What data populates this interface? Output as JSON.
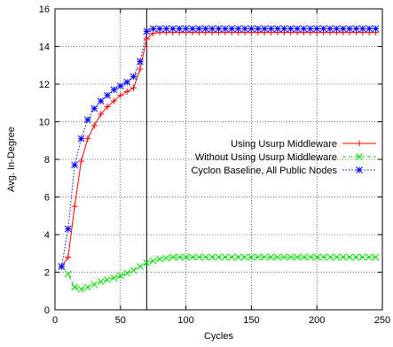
{
  "chart_data": {
    "type": "line",
    "xlabel": "Cycles",
    "ylabel": "Avg. In-Degree",
    "xlim": [
      0,
      250
    ],
    "ylim": [
      0,
      16
    ],
    "xticks": [
      0,
      50,
      100,
      150,
      200,
      250
    ],
    "yticks": [
      0,
      2,
      4,
      6,
      8,
      10,
      12,
      14,
      16
    ],
    "grid": true,
    "legend_position": "right-middle",
    "vline_x": 70,
    "series": [
      {
        "name": "Using Usurp Middleware",
        "color": "#ff0000",
        "marker": "plus",
        "dash": "solid",
        "points": [
          [
            5,
            2.3
          ],
          [
            10,
            2.8
          ],
          [
            15,
            5.5
          ],
          [
            20,
            7.9
          ],
          [
            25,
            9.1
          ],
          [
            30,
            9.8
          ],
          [
            35,
            10.4
          ],
          [
            40,
            10.8
          ],
          [
            45,
            11.1
          ],
          [
            50,
            11.4
          ],
          [
            55,
            11.6
          ],
          [
            60,
            11.8
          ],
          [
            65,
            12.8
          ],
          [
            70,
            14.4
          ],
          [
            75,
            14.7
          ],
          [
            80,
            14.75
          ],
          [
            85,
            14.75
          ],
          [
            90,
            14.75
          ],
          [
            95,
            14.75
          ],
          [
            100,
            14.75
          ],
          [
            105,
            14.75
          ],
          [
            110,
            14.75
          ],
          [
            115,
            14.75
          ],
          [
            120,
            14.75
          ],
          [
            125,
            14.75
          ],
          [
            130,
            14.75
          ],
          [
            135,
            14.75
          ],
          [
            140,
            14.75
          ],
          [
            145,
            14.75
          ],
          [
            150,
            14.75
          ],
          [
            155,
            14.75
          ],
          [
            160,
            14.75
          ],
          [
            165,
            14.75
          ],
          [
            170,
            14.75
          ],
          [
            175,
            14.75
          ],
          [
            180,
            14.75
          ],
          [
            185,
            14.75
          ],
          [
            190,
            14.75
          ],
          [
            195,
            14.75
          ],
          [
            200,
            14.75
          ],
          [
            205,
            14.75
          ],
          [
            210,
            14.75
          ],
          [
            215,
            14.75
          ],
          [
            220,
            14.75
          ],
          [
            225,
            14.75
          ],
          [
            230,
            14.75
          ],
          [
            235,
            14.75
          ],
          [
            240,
            14.75
          ],
          [
            245,
            14.75
          ]
        ]
      },
      {
        "name": "Without Using Usurp Middleware",
        "color": "#00dd00",
        "marker": "cross",
        "dash": "dashed",
        "points": [
          [
            5,
            2.3
          ],
          [
            10,
            1.9
          ],
          [
            15,
            1.2
          ],
          [
            20,
            1.1
          ],
          [
            25,
            1.2
          ],
          [
            30,
            1.35
          ],
          [
            35,
            1.5
          ],
          [
            40,
            1.6
          ],
          [
            45,
            1.7
          ],
          [
            50,
            1.8
          ],
          [
            55,
            1.95
          ],
          [
            60,
            2.1
          ],
          [
            65,
            2.3
          ],
          [
            70,
            2.5
          ],
          [
            75,
            2.6
          ],
          [
            80,
            2.7
          ],
          [
            85,
            2.75
          ],
          [
            90,
            2.8
          ],
          [
            95,
            2.8
          ],
          [
            100,
            2.8
          ],
          [
            105,
            2.8
          ],
          [
            110,
            2.8
          ],
          [
            115,
            2.8
          ],
          [
            120,
            2.8
          ],
          [
            125,
            2.8
          ],
          [
            130,
            2.8
          ],
          [
            135,
            2.8
          ],
          [
            140,
            2.8
          ],
          [
            145,
            2.8
          ],
          [
            150,
            2.8
          ],
          [
            155,
            2.8
          ],
          [
            160,
            2.8
          ],
          [
            165,
            2.8
          ],
          [
            170,
            2.8
          ],
          [
            175,
            2.8
          ],
          [
            180,
            2.8
          ],
          [
            185,
            2.8
          ],
          [
            190,
            2.8
          ],
          [
            195,
            2.8
          ],
          [
            200,
            2.8
          ],
          [
            205,
            2.8
          ],
          [
            210,
            2.8
          ],
          [
            215,
            2.8
          ],
          [
            220,
            2.8
          ],
          [
            225,
            2.8
          ],
          [
            230,
            2.8
          ],
          [
            235,
            2.8
          ],
          [
            240,
            2.8
          ],
          [
            245,
            2.8
          ]
        ]
      },
      {
        "name": "Cyclon Baseline, All Public Nodes",
        "color": "#0000ff",
        "marker": "star",
        "dash": "dotted",
        "points": [
          [
            5,
            2.3
          ],
          [
            10,
            4.3
          ],
          [
            15,
            7.7
          ],
          [
            20,
            9.1
          ],
          [
            25,
            10.1
          ],
          [
            30,
            10.7
          ],
          [
            35,
            11.1
          ],
          [
            40,
            11.4
          ],
          [
            45,
            11.7
          ],
          [
            50,
            11.9
          ],
          [
            55,
            12.1
          ],
          [
            60,
            12.4
          ],
          [
            65,
            13.2
          ],
          [
            70,
            14.8
          ],
          [
            75,
            14.95
          ],
          [
            80,
            14.95
          ],
          [
            85,
            14.95
          ],
          [
            90,
            14.95
          ],
          [
            95,
            14.95
          ],
          [
            100,
            14.95
          ],
          [
            105,
            14.95
          ],
          [
            110,
            14.95
          ],
          [
            115,
            14.95
          ],
          [
            120,
            14.95
          ],
          [
            125,
            14.95
          ],
          [
            130,
            14.95
          ],
          [
            135,
            14.95
          ],
          [
            140,
            14.95
          ],
          [
            145,
            14.95
          ],
          [
            150,
            14.95
          ],
          [
            155,
            14.95
          ],
          [
            160,
            14.95
          ],
          [
            165,
            14.95
          ],
          [
            170,
            14.95
          ],
          [
            175,
            14.95
          ],
          [
            180,
            14.95
          ],
          [
            185,
            14.95
          ],
          [
            190,
            14.95
          ],
          [
            195,
            14.95
          ],
          [
            200,
            14.95
          ],
          [
            205,
            14.95
          ],
          [
            210,
            14.95
          ],
          [
            215,
            14.95
          ],
          [
            220,
            14.95
          ],
          [
            225,
            14.95
          ],
          [
            230,
            14.95
          ],
          [
            235,
            14.95
          ],
          [
            240,
            14.95
          ],
          [
            245,
            14.95
          ]
        ]
      }
    ]
  }
}
